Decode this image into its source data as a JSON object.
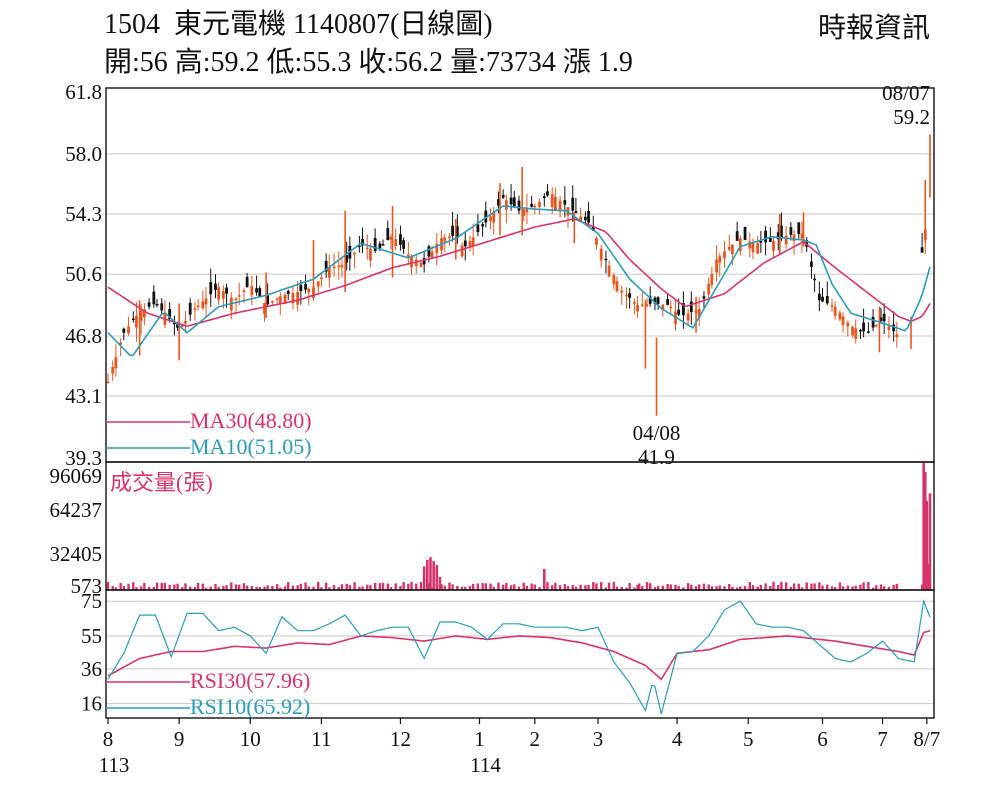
{
  "header": {
    "stock_code": "1504",
    "stock_name": "東元電機",
    "date_code": "1140807(日線圖)",
    "ohlc_text": "開:56 高:59.2 低:55.3 收:56.2 量:73734 漲 1.9",
    "source": "時報資訊"
  },
  "colors": {
    "up": "#e8561f",
    "down": "#111111",
    "ma30": "#d6336c",
    "ma10": "#2b9bb8",
    "volume": "#d6336c",
    "rsi30": "#d6336c",
    "rsi10": "#2b9bb8",
    "grid": "#c8c8c8"
  },
  "chart_data": [
    {
      "type": "candlestick",
      "name": "price",
      "ylim": [
        39.3,
        61.8
      ],
      "y_ticks": [
        "61.8",
        "58.0",
        "54.3",
        "50.6",
        "46.8",
        "43.1",
        "39.3"
      ],
      "x_ticks": [
        "8",
        "9",
        "10",
        "11",
        "12",
        "1",
        "2",
        "3",
        "4",
        "5",
        "6",
        "7",
        "8/7"
      ],
      "x_sub_labels": [
        {
          "under": "8",
          "text": "113"
        },
        {
          "under": "1",
          "text": "114"
        }
      ],
      "legend": [
        {
          "label": "MA30(48.80)",
          "color": "#d6336c"
        },
        {
          "label": "MA10(51.05)",
          "color": "#2b9bb8"
        }
      ],
      "annotations": [
        {
          "date": "08/07",
          "value": "59.2",
          "kind": "high"
        },
        {
          "date": "04/08",
          "value": "41.9",
          "kind": "low"
        }
      ],
      "close_path": [
        [
          0,
          44.0
        ],
        [
          10,
          47.0
        ],
        [
          20,
          48.3
        ],
        [
          30,
          48.8
        ],
        [
          45,
          47.2
        ],
        [
          55,
          48.5
        ],
        [
          70,
          49.8
        ],
        [
          80,
          49.0
        ],
        [
          90,
          50.0
        ],
        [
          100,
          48.7
        ],
        [
          110,
          49.3
        ],
        [
          120,
          49.5
        ],
        [
          130,
          49.8
        ],
        [
          140,
          51.0
        ],
        [
          150,
          51.2
        ],
        [
          160,
          52.4
        ],
        [
          170,
          52.0
        ],
        [
          180,
          53.0
        ],
        [
          190,
          51.8
        ],
        [
          200,
          51.2
        ],
        [
          210,
          52.8
        ],
        [
          220,
          53.0
        ],
        [
          225,
          52.2
        ],
        [
          235,
          53.3
        ],
        [
          245,
          54.5
        ],
        [
          250,
          55.3
        ],
        [
          260,
          54.5
        ],
        [
          270,
          54.8
        ],
        [
          280,
          55.6
        ],
        [
          290,
          54.8
        ],
        [
          305,
          53.7
        ],
        [
          315,
          51.5
        ],
        [
          325,
          49.6
        ],
        [
          335,
          48.7
        ],
        [
          345,
          48.8
        ],
        [
          355,
          48.7
        ],
        [
          362,
          48.0
        ],
        [
          375,
          48.5
        ],
        [
          385,
          51.5
        ],
        [
          392,
          52.2
        ],
        [
          400,
          52.8
        ],
        [
          410,
          52.5
        ],
        [
          420,
          52.6
        ],
        [
          430,
          53.0
        ],
        [
          440,
          53.1
        ],
        [
          450,
          49.0
        ],
        [
          460,
          48.6
        ],
        [
          470,
          47.4
        ],
        [
          480,
          47.0
        ],
        [
          490,
          47.8
        ],
        [
          500,
          46.8
        ],
        [
          506,
          47.5
        ],
        [
          512,
          50.5
        ],
        [
          516,
          52.4
        ],
        [
          520,
          56.2
        ]
      ],
      "extremes": [
        [
          20,
          45.6,
          49.0
        ],
        [
          45,
          45.3,
          48.8
        ],
        [
          100,
          47.9,
          50.7
        ],
        [
          130,
          49.2,
          52.7
        ],
        [
          150,
          49.5,
          54.5
        ],
        [
          180,
          50.4,
          54.8
        ],
        [
          220,
          51.5,
          54.0
        ],
        [
          248,
          53.0,
          56.2
        ],
        [
          262,
          53.0,
          57.2
        ],
        [
          295,
          52.5,
          54.4
        ],
        [
          340,
          44.8,
          49.0
        ],
        [
          347,
          41.9,
          46.7
        ],
        [
          372,
          47.0,
          49.2
        ],
        [
          425,
          51.8,
          54.3
        ],
        [
          440,
          52.3,
          54.4
        ],
        [
          488,
          45.8,
          48.6
        ],
        [
          508,
          46.0,
          48.0
        ],
        [
          517,
          52.5,
          56.4
        ],
        [
          520,
          55.3,
          59.2
        ]
      ],
      "ma30_path": [
        [
          0,
          49.8
        ],
        [
          25,
          48.2
        ],
        [
          50,
          47.4
        ],
        [
          80,
          48.2
        ],
        [
          120,
          49.0
        ],
        [
          150,
          49.9
        ],
        [
          180,
          51.0
        ],
        [
          210,
          51.7
        ],
        [
          240,
          52.6
        ],
        [
          270,
          53.5
        ],
        [
          295,
          54.0
        ],
        [
          315,
          53.2
        ],
        [
          330,
          51.5
        ],
        [
          350,
          49.7
        ],
        [
          365,
          48.6
        ],
        [
          390,
          49.4
        ],
        [
          415,
          51.3
        ],
        [
          440,
          52.6
        ],
        [
          460,
          51.0
        ],
        [
          480,
          49.5
        ],
        [
          500,
          48.0
        ],
        [
          508,
          47.7
        ],
        [
          515,
          48.0
        ],
        [
          520,
          48.8
        ]
      ],
      "ma10_path": [
        [
          0,
          47.0
        ],
        [
          15,
          45.5
        ],
        [
          35,
          48.3
        ],
        [
          50,
          47.0
        ],
        [
          70,
          48.6
        ],
        [
          100,
          49.3
        ],
        [
          130,
          50.3
        ],
        [
          160,
          52.5
        ],
        [
          190,
          51.6
        ],
        [
          220,
          52.8
        ],
        [
          250,
          54.8
        ],
        [
          270,
          54.6
        ],
        [
          290,
          54.5
        ],
        [
          310,
          53.1
        ],
        [
          330,
          50.3
        ],
        [
          350,
          48.5
        ],
        [
          370,
          47.3
        ],
        [
          385,
          49.8
        ],
        [
          400,
          52.3
        ],
        [
          420,
          52.9
        ],
        [
          440,
          52.7
        ],
        [
          448,
          52.4
        ],
        [
          458,
          50.0
        ],
        [
          470,
          48.2
        ],
        [
          490,
          47.6
        ],
        [
          505,
          47.1
        ],
        [
          515,
          49.3
        ],
        [
          520,
          51.05
        ]
      ]
    },
    {
      "type": "bar",
      "name": "volume",
      "label": "成交量(張)",
      "y_ticks": [
        "96069",
        "64237",
        "32405",
        "573"
      ],
      "ylim": [
        0,
        96069
      ],
      "spikes": [
        [
          200,
          18000
        ],
        [
          202,
          23000
        ],
        [
          204,
          25000
        ],
        [
          206,
          22000
        ],
        [
          208,
          19000
        ],
        [
          210,
          10000
        ],
        [
          276,
          16000
        ],
        [
          336,
          5000
        ],
        [
          516,
          97000
        ],
        [
          517,
          90000
        ],
        [
          518,
          68000
        ],
        [
          519,
          20000
        ],
        [
          520,
          73734
        ]
      ],
      "base_volume": 3500
    },
    {
      "type": "line",
      "name": "rsi",
      "y_ticks": [
        "75",
        "55",
        "36",
        "16"
      ],
      "ylim": [
        10,
        78
      ],
      "legend": [
        {
          "label": "RSI30(57.96)",
          "color": "#d6336c"
        },
        {
          "label": "RSI10(65.92)",
          "color": "#2b9bb8"
        }
      ],
      "rsi30_path": [
        [
          0,
          32
        ],
        [
          20,
          42
        ],
        [
          40,
          46
        ],
        [
          60,
          46
        ],
        [
          80,
          49
        ],
        [
          100,
          48
        ],
        [
          120,
          51
        ],
        [
          140,
          50
        ],
        [
          160,
          55
        ],
        [
          180,
          54
        ],
        [
          200,
          52
        ],
        [
          220,
          55
        ],
        [
          240,
          53
        ],
        [
          260,
          55
        ],
        [
          280,
          54
        ],
        [
          300,
          51
        ],
        [
          320,
          46
        ],
        [
          340,
          38
        ],
        [
          350,
          30
        ],
        [
          360,
          45
        ],
        [
          380,
          47
        ],
        [
          400,
          53
        ],
        [
          430,
          55
        ],
        [
          460,
          52
        ],
        [
          480,
          49
        ],
        [
          500,
          46
        ],
        [
          510,
          44
        ],
        [
          516,
          57
        ],
        [
          520,
          57.96
        ]
      ],
      "rsi10_path": [
        [
          0,
          30
        ],
        [
          10,
          45
        ],
        [
          20,
          67
        ],
        [
          30,
          67
        ],
        [
          40,
          43
        ],
        [
          50,
          68
        ],
        [
          60,
          68
        ],
        [
          70,
          58
        ],
        [
          80,
          60
        ],
        [
          90,
          55
        ],
        [
          100,
          45
        ],
        [
          110,
          66
        ],
        [
          120,
          58
        ],
        [
          130,
          58
        ],
        [
          140,
          62
        ],
        [
          150,
          67
        ],
        [
          160,
          55
        ],
        [
          170,
          58
        ],
        [
          180,
          60
        ],
        [
          190,
          60
        ],
        [
          200,
          42
        ],
        [
          210,
          63
        ],
        [
          220,
          63
        ],
        [
          230,
          60
        ],
        [
          240,
          53
        ],
        [
          250,
          62
        ],
        [
          260,
          62
        ],
        [
          270,
          60
        ],
        [
          280,
          60
        ],
        [
          290,
          60
        ],
        [
          300,
          58
        ],
        [
          310,
          60
        ],
        [
          320,
          40
        ],
        [
          330,
          28
        ],
        [
          335,
          20
        ],
        [
          340,
          12
        ],
        [
          345,
          30
        ],
        [
          350,
          10
        ],
        [
          360,
          45
        ],
        [
          370,
          46
        ],
        [
          380,
          55
        ],
        [
          390,
          70
        ],
        [
          400,
          75
        ],
        [
          410,
          62
        ],
        [
          420,
          60
        ],
        [
          430,
          60
        ],
        [
          440,
          58
        ],
        [
          450,
          50
        ],
        [
          460,
          42
        ],
        [
          470,
          40
        ],
        [
          480,
          45
        ],
        [
          490,
          52
        ],
        [
          500,
          42
        ],
        [
          510,
          40
        ],
        [
          516,
          75
        ],
        [
          520,
          65.92
        ]
      ]
    }
  ]
}
